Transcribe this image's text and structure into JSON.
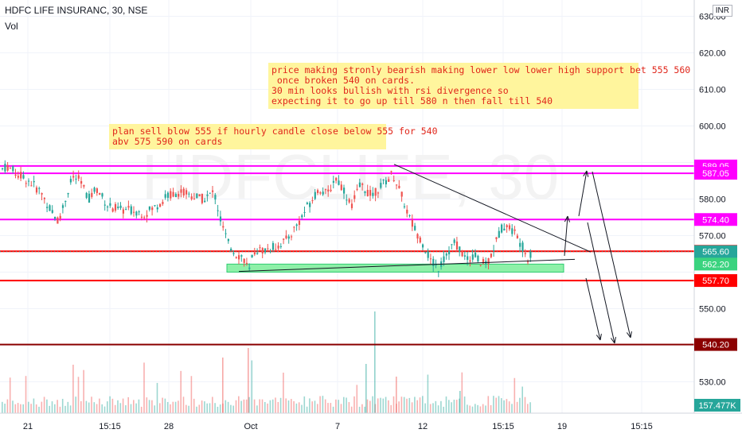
{
  "header": {
    "symbol_title": "HDFC LIFE INSURANC, 30, NSE",
    "volume_label": "Vol",
    "currency_badge": "INR"
  },
  "watermark": "HDFCLIFE, 30",
  "annotations": {
    "note_1": "price making stronly bearish making lower low lower high support bet 555 560\n once broken 540 on cards.\n30 min looks bullish with rsi divergence so\nexpecting it to go up till 580 n then fall till 540",
    "note_2": "plan sell blow 555 if hourly candle close below 555 for 540\nabv 575 590 on cards"
  },
  "colors": {
    "up": "#26a69a",
    "down": "#ef5350",
    "magenta": "#ff00ff",
    "red_line": "#ff0000",
    "dark_red": "#8b0000",
    "support_zone": "#8ef0a8",
    "vol_tag": "#26a69a"
  },
  "chart_data": {
    "type": "candlestick",
    "title": "HDFC LIFE INSURANC, 30, NSE",
    "price_axis": {
      "ticks": [
        630,
        620,
        610,
        600,
        590,
        580,
        570,
        560,
        550,
        540,
        530
      ],
      "tick_labels": [
        "630.00",
        "620.00",
        "610.00",
        "600.00",
        "590.00",
        "580.00",
        "570.00",
        "560.00",
        "550.00",
        "540.00",
        "530.00"
      ],
      "range": [
        525,
        633
      ]
    },
    "time_axis": {
      "tick_labels": [
        "21",
        "15:15",
        "28",
        "Oct",
        "7",
        "12",
        "15:15",
        "19",
        "15:15"
      ]
    },
    "horizontal_levels": [
      {
        "value": 589.05,
        "label": "589.05",
        "color": "magenta"
      },
      {
        "value": 587.05,
        "label": "587.05",
        "color": "magenta"
      },
      {
        "value": 574.4,
        "label": "574.40",
        "color": "magenta"
      },
      {
        "value": 565.7,
        "label": "565.70",
        "color": "red_line"
      },
      {
        "value": 557.7,
        "label": "557.70",
        "color": "red_line"
      },
      {
        "value": 540.2,
        "label": "540.20",
        "color": "dark_red"
      }
    ],
    "current_price": {
      "value": 565.6,
      "label": "565.60"
    },
    "support_zone": {
      "from": 560,
      "to": 562.2,
      "label": "562.20"
    },
    "volume_tag": "157.477K",
    "price_path": [
      [
        0,
        588
      ],
      [
        8,
        589
      ],
      [
        20,
        587
      ],
      [
        35,
        585
      ],
      [
        50,
        582
      ],
      [
        65,
        576
      ],
      [
        72,
        574
      ],
      [
        80,
        579
      ],
      [
        90,
        586
      ],
      [
        100,
        585
      ],
      [
        110,
        580
      ],
      [
        120,
        583
      ],
      [
        135,
        578
      ],
      [
        150,
        577
      ],
      [
        165,
        577
      ],
      [
        180,
        576
      ],
      [
        195,
        578
      ],
      [
        210,
        581
      ],
      [
        225,
        582
      ],
      [
        240,
        581
      ],
      [
        255,
        580
      ],
      [
        268,
        582
      ],
      [
        275,
        575
      ],
      [
        285,
        568
      ],
      [
        295,
        565
      ],
      [
        305,
        564
      ],
      [
        312,
        560
      ],
      [
        318,
        566
      ],
      [
        330,
        566
      ],
      [
        345,
        567
      ],
      [
        360,
        569
      ],
      [
        375,
        574
      ],
      [
        388,
        579
      ],
      [
        400,
        583
      ],
      [
        410,
        581
      ],
      [
        420,
        586
      ],
      [
        430,
        583
      ],
      [
        440,
        578
      ],
      [
        452,
        584
      ],
      [
        465,
        581
      ],
      [
        480,
        584
      ],
      [
        492,
        587
      ],
      [
        500,
        583
      ],
      [
        508,
        578
      ],
      [
        515,
        574
      ],
      [
        522,
        571
      ],
      [
        530,
        568
      ],
      [
        540,
        563
      ],
      [
        550,
        561
      ],
      [
        560,
        565
      ],
      [
        570,
        568
      ],
      [
        578,
        566
      ],
      [
        585,
        563
      ],
      [
        595,
        565
      ],
      [
        603,
        562
      ],
      [
        612,
        563
      ],
      [
        620,
        567
      ],
      [
        628,
        572
      ],
      [
        635,
        573
      ],
      [
        645,
        571
      ],
      [
        655,
        567
      ],
      [
        662,
        564
      ],
      [
        668,
        565
      ]
    ]
  }
}
